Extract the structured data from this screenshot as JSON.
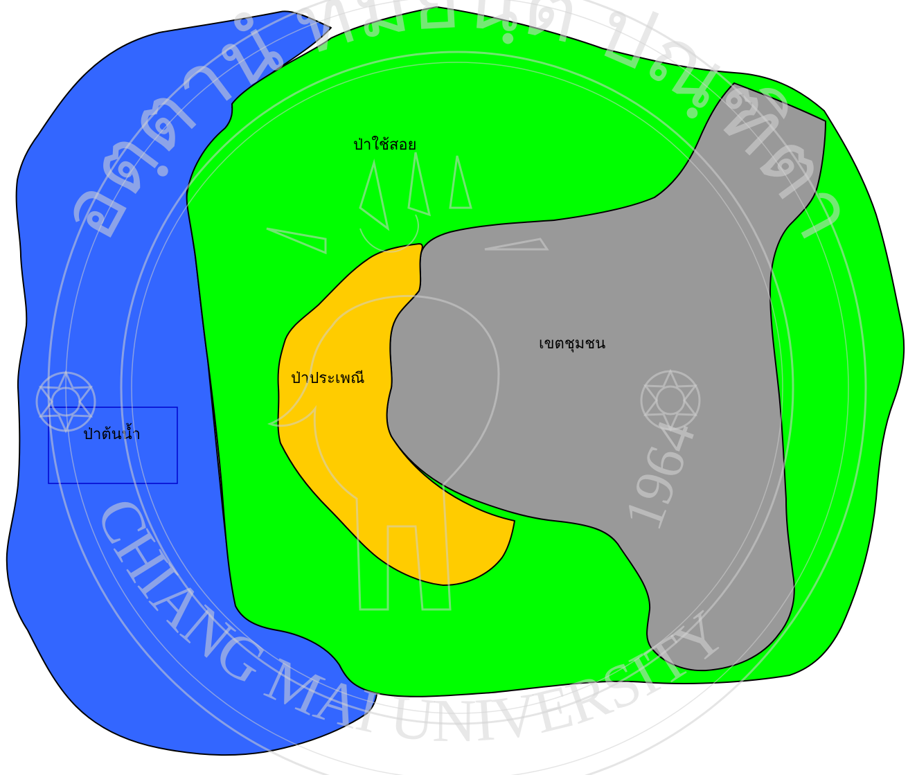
{
  "map": {
    "zones": {
      "watershed": {
        "label": "ป่าต้นน้ำ",
        "color": "#3366ff"
      },
      "utility": {
        "label": "ป่าใช้สอย",
        "color": "#00ff00"
      },
      "traditional": {
        "label": "ป่าประเพณี",
        "color": "#ffcc00"
      },
      "community": {
        "label": "เขตชุมชน",
        "color": "#999999"
      }
    },
    "label_box_color": "#0000cc"
  },
  "watermark": {
    "name_en": "CHIANG MAI UNIVERSITY",
    "motto_th": "อตฺตานํ ทมยนฺติ ปณฺฑิตา",
    "year": "1964",
    "color": "#d0d0d0"
  }
}
